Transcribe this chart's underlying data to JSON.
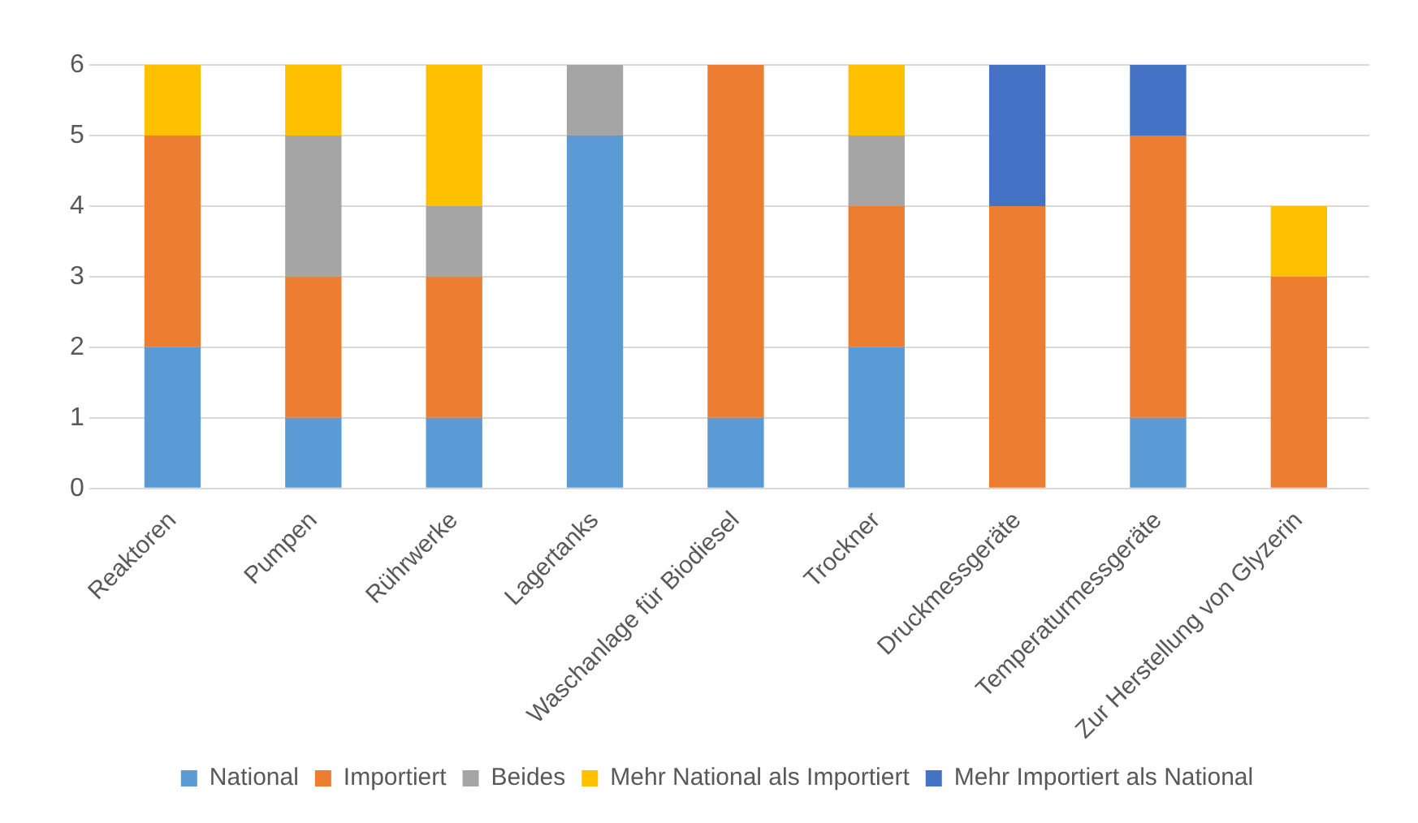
{
  "chart_data": {
    "type": "bar",
    "stacked": true,
    "categories": [
      "Reaktoren",
      "Pumpen",
      "Rührwerke",
      "Lagertanks",
      "Waschanlage für Biodiesel",
      "Trockner",
      "Druckmessgeräte",
      "Temperaturmessgeräte",
      "Zur Herstellung von Glyzerin"
    ],
    "series": [
      {
        "name": "National",
        "color": "#5b9bd5",
        "values": [
          2,
          1,
          1,
          5,
          1,
          2,
          0,
          1,
          0
        ]
      },
      {
        "name": "Importiert",
        "color": "#ed7d31",
        "values": [
          3,
          2,
          2,
          0,
          5,
          2,
          4,
          4,
          3
        ]
      },
      {
        "name": "Beides",
        "color": "#a5a5a5",
        "values": [
          0,
          2,
          1,
          1,
          0,
          1,
          0,
          0,
          0
        ]
      },
      {
        "name": "Mehr National als Importiert",
        "color": "#ffc000",
        "values": [
          1,
          1,
          2,
          0,
          0,
          1,
          0,
          0,
          1
        ]
      },
      {
        "name": "Mehr Importiert als National",
        "color": "#4472c4",
        "values": [
          0,
          0,
          0,
          0,
          0,
          0,
          2,
          1,
          0
        ]
      }
    ],
    "ylim": [
      0,
      6
    ],
    "yticks": [
      0,
      1,
      2,
      3,
      4,
      5,
      6
    ],
    "grid": "y",
    "legend": "bottom"
  }
}
